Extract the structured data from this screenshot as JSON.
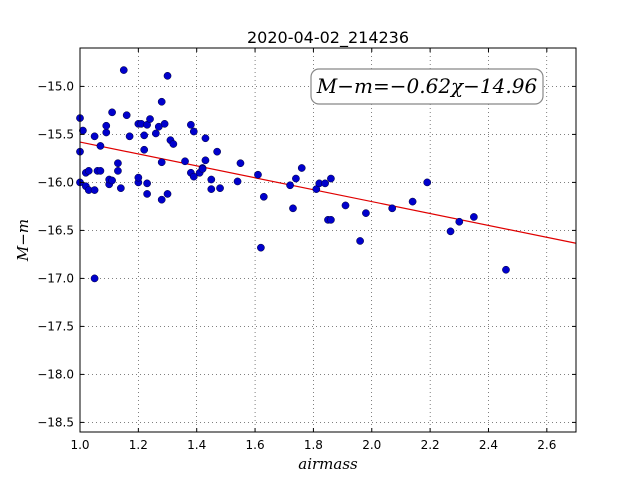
{
  "chart_data": {
    "type": "scatter",
    "title": "2020-04-02_214236",
    "xlabel": "airmass",
    "ylabel": "M−m",
    "xlim": [
      1.0,
      2.7
    ],
    "ylim": [
      -18.6,
      -14.6
    ],
    "y_inverted": true,
    "x_ticks": [
      "1.0",
      "1.2",
      "1.4",
      "1.6",
      "1.8",
      "2.0",
      "2.2",
      "2.4",
      "2.6"
    ],
    "x_tick_values": [
      1.0,
      1.2,
      1.4,
      1.6,
      1.8,
      2.0,
      2.2,
      2.4,
      2.6
    ],
    "y_ticks": [
      "−15.0",
      "−15.5",
      "−16.0",
      "−16.5",
      "−17.0",
      "−17.5",
      "−18.0",
      "−18.5"
    ],
    "y_tick_values": [
      -15.0,
      -15.5,
      -16.0,
      -16.5,
      -17.0,
      -17.5,
      -18.0,
      -18.5
    ],
    "grid": true,
    "annotation": "M−m=−0.62χ−14.96",
    "fit": {
      "slope": -0.62,
      "intercept": -14.96,
      "color": "#e00000"
    },
    "point_color": "#0000cc",
    "series": [
      {
        "x": [
          1.0,
          1.0,
          1.0,
          1.01,
          1.02,
          1.02,
          1.03,
          1.03,
          1.05,
          1.05,
          1.05,
          1.06,
          1.07,
          1.07,
          1.09,
          1.09,
          1.1,
          1.1,
          1.11,
          1.11,
          1.13,
          1.13,
          1.14,
          1.15,
          1.16,
          1.17,
          1.2,
          1.2,
          1.2,
          1.21,
          1.22,
          1.22,
          1.23,
          1.23,
          1.23,
          1.24,
          1.26,
          1.27,
          1.28,
          1.28,
          1.28,
          1.29,
          1.3,
          1.3,
          1.31,
          1.32,
          1.36,
          1.38,
          1.38,
          1.39,
          1.39,
          1.41,
          1.42,
          1.42,
          1.43,
          1.43,
          1.45,
          1.45,
          1.47,
          1.48,
          1.54,
          1.55,
          1.61,
          1.62,
          1.63,
          1.72,
          1.73,
          1.74,
          1.76,
          1.81,
          1.82,
          1.84,
          1.85,
          1.86,
          1.86,
          1.91,
          1.96,
          1.98,
          2.07,
          2.14,
          2.19,
          2.27,
          2.3,
          2.35,
          2.46
        ],
        "y": [
          -15.33,
          -15.68,
          -16.0,
          -15.46,
          -16.04,
          -15.9,
          -16.08,
          -15.88,
          -17.0,
          -15.52,
          -16.08,
          -15.88,
          -15.62,
          -15.88,
          -15.48,
          -15.41,
          -16.02,
          -15.97,
          -15.27,
          -15.98,
          -15.8,
          -15.88,
          -16.06,
          -14.83,
          -15.3,
          -15.52,
          -16.0,
          -15.95,
          -15.39,
          -15.39,
          -15.66,
          -15.51,
          -16.12,
          -15.4,
          -16.01,
          -15.34,
          -15.49,
          -15.42,
          -16.18,
          -15.16,
          -15.79,
          -15.39,
          -16.12,
          -14.89,
          -15.56,
          -15.6,
          -15.78,
          -15.4,
          -15.9,
          -15.94,
          -15.47,
          -15.9,
          -15.85,
          -15.86,
          -15.54,
          -15.77,
          -16.07,
          -15.97,
          -15.68,
          -16.06,
          -15.99,
          -15.8,
          -15.92,
          -16.68,
          -16.15,
          -16.03,
          -16.27,
          -15.96,
          -15.85,
          -16.07,
          -16.01,
          -16.01,
          -16.39,
          -15.96,
          -16.39,
          -16.24,
          -16.61,
          -16.32,
          -16.27,
          -16.2,
          -16.0,
          -16.51,
          -16.41,
          -16.36,
          -16.91
        ]
      }
    ]
  }
}
